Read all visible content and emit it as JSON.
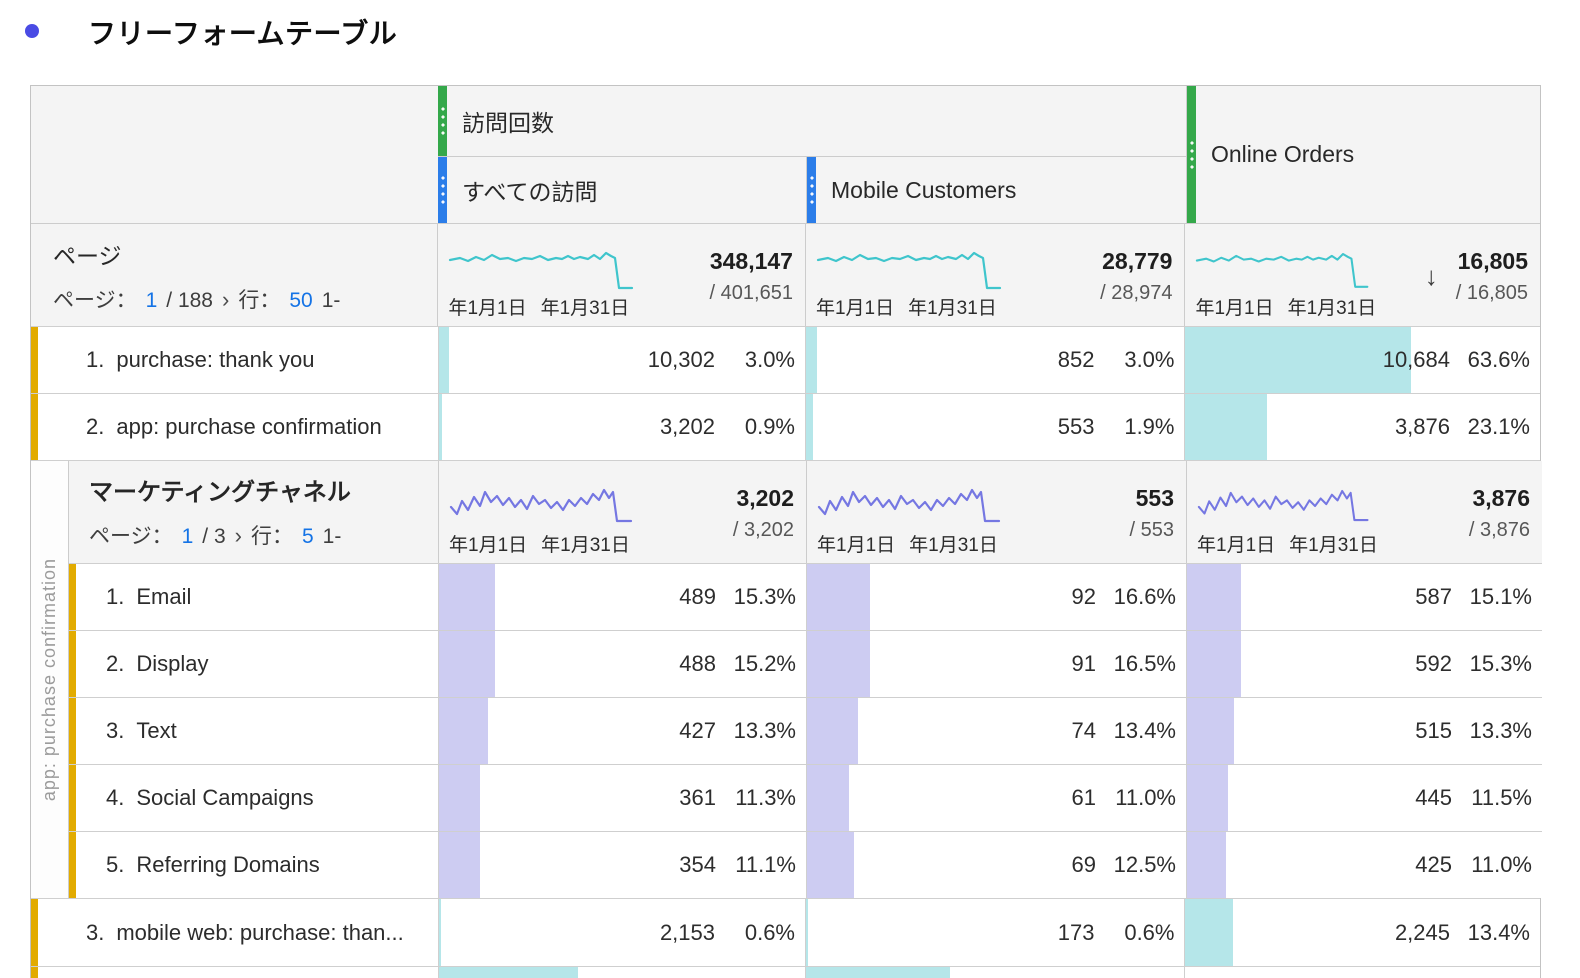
{
  "title": {
    "text": "フリーフォームテーブル"
  },
  "colors": {
    "bullet": "#4a4be4",
    "accent_green": "#34a84a",
    "accent_blue": "#2b7de9",
    "teal_line": "#3fc5cc",
    "teal_fill": "#b5e6e9",
    "purple_line": "#7577e2",
    "purple_fill": "#cdccf2",
    "gold": "#e2ab00",
    "link_blue": "#1473e6"
  },
  "table": {
    "columns": {
      "visits_group": "訪問回数",
      "all_visits": "すべての訪問",
      "mobile_customers": "Mobile Customers",
      "online_orders": "Online Orders"
    },
    "pages_row": {
      "title": "ページ",
      "pagination": {
        "label_page": "ページ：",
        "current": "1",
        "of": "/ 188",
        "chevron": "›",
        "label_rows": "行：",
        "rows": "50",
        "range": "1-"
      },
      "totals": [
        {
          "value": "348,147",
          "total": "/ 401,651",
          "date_start": "年1月1日",
          "date_end": "年1月31日"
        },
        {
          "value": "28,779",
          "total": "/ 28,974",
          "date_start": "年1月1日",
          "date_end": "年1月31日"
        },
        {
          "value": "16,805",
          "total": "/ 16,805",
          "date_start": "年1月1日",
          "date_end": "年1月31日",
          "sort_arrow": "↓"
        }
      ]
    },
    "rows": [
      {
        "rank": "1.",
        "name": "purchase: thank you",
        "metrics": [
          {
            "value": "10,302",
            "pct": "3.0%",
            "bar": 3.0
          },
          {
            "value": "852",
            "pct": "3.0%",
            "bar": 3.0
          },
          {
            "value": "10,684",
            "pct": "63.6%",
            "bar": 63.6
          }
        ]
      },
      {
        "rank": "2.",
        "name": "app: purchase confirmation",
        "metrics": [
          {
            "value": "3,202",
            "pct": "0.9%",
            "bar": 0.9
          },
          {
            "value": "553",
            "pct": "1.9%",
            "bar": 1.9
          },
          {
            "value": "3,876",
            "pct": "23.1%",
            "bar": 23.1
          }
        ]
      },
      {
        "rank": "3.",
        "name": "mobile web: purchase: than...",
        "metrics": [
          {
            "value": "2,153",
            "pct": "0.6%",
            "bar": 0.6
          },
          {
            "value": "173",
            "pct": "0.6%",
            "bar": 0.6
          },
          {
            "value": "2,245",
            "pct": "13.4%",
            "bar": 13.4
          }
        ]
      }
    ],
    "breakdown": {
      "side_label": "app: purchase confirmation",
      "header": {
        "title": "マーケティングチャネル",
        "pagination": {
          "label_page": "ページ：",
          "current": "1",
          "of": "/ 3",
          "chevron": "›",
          "label_rows": "行：",
          "rows": "5",
          "range": "1-"
        },
        "totals": [
          {
            "value": "3,202",
            "total": "/ 3,202",
            "date_start": "年1月1日",
            "date_end": "年1月31日"
          },
          {
            "value": "553",
            "total": "/ 553",
            "date_start": "年1月1日",
            "date_end": "年1月31日"
          },
          {
            "value": "3,876",
            "total": "/ 3,876",
            "date_start": "年1月1日",
            "date_end": "年1月31日"
          }
        ]
      },
      "rows": [
        {
          "rank": "1.",
          "name": "Email",
          "metrics": [
            {
              "value": "489",
              "pct": "15.3%",
              "bar": 15.3
            },
            {
              "value": "92",
              "pct": "16.6%",
              "bar": 16.6
            },
            {
              "value": "587",
              "pct": "15.1%",
              "bar": 15.1
            }
          ]
        },
        {
          "rank": "2.",
          "name": "Display",
          "metrics": [
            {
              "value": "488",
              "pct": "15.2%",
              "bar": 15.2
            },
            {
              "value": "91",
              "pct": "16.5%",
              "bar": 16.5
            },
            {
              "value": "592",
              "pct": "15.3%",
              "bar": 15.3
            }
          ]
        },
        {
          "rank": "3.",
          "name": "Text",
          "metrics": [
            {
              "value": "427",
              "pct": "13.3%",
              "bar": 13.3
            },
            {
              "value": "74",
              "pct": "13.4%",
              "bar": 13.4
            },
            {
              "value": "515",
              "pct": "13.3%",
              "bar": 13.3
            }
          ]
        },
        {
          "rank": "4.",
          "name": "Social Campaigns",
          "metrics": [
            {
              "value": "361",
              "pct": "11.3%",
              "bar": 11.3
            },
            {
              "value": "61",
              "pct": "11.0%",
              "bar": 11.0
            },
            {
              "value": "445",
              "pct": "11.5%",
              "bar": 11.5
            }
          ]
        },
        {
          "rank": "5.",
          "name": "Referring Domains",
          "metrics": [
            {
              "value": "354",
              "pct": "11.1%",
              "bar": 11.1
            },
            {
              "value": "69",
              "pct": "12.5%",
              "bar": 12.5
            },
            {
              "value": "425",
              "pct": "11.0%",
              "bar": 11.0
            }
          ]
        }
      ]
    },
    "partial_row": {
      "bars": [
        38,
        38,
        0
      ]
    }
  }
}
